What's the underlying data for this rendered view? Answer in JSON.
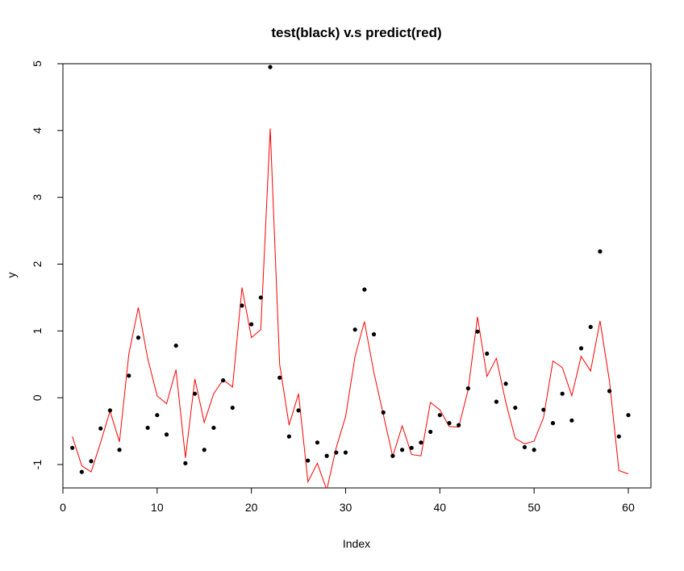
{
  "chart_data": {
    "type": "scatter",
    "title": "test(black) v.s predict(red)",
    "xlabel": "Index",
    "ylabel": "y",
    "xlim": [
      0,
      62.4
    ],
    "ylim": [
      -1.35,
      5.0
    ],
    "x_ticks": [
      0,
      10,
      20,
      30,
      40,
      50,
      60
    ],
    "y_ticks": [
      -1,
      0,
      1,
      2,
      3,
      4,
      5
    ],
    "grid": false,
    "series": [
      {
        "style": "points",
        "color": "#000000",
        "x": [
          1,
          2,
          3,
          4,
          5,
          6,
          7,
          8,
          9,
          10,
          11,
          12,
          13,
          14,
          15,
          16,
          17,
          18,
          19,
          20,
          21,
          22,
          23,
          24,
          25,
          26,
          27,
          28,
          29,
          30,
          31,
          32,
          33,
          34,
          35,
          36,
          37,
          38,
          39,
          40,
          41,
          42,
          43,
          44,
          45,
          46,
          47,
          48,
          49,
          50,
          51,
          52,
          53,
          54,
          55,
          56,
          57,
          58,
          59,
          60
        ],
        "y": [
          -0.75,
          -1.11,
          -0.95,
          -0.46,
          -0.19,
          -0.78,
          0.33,
          0.9,
          -0.45,
          -0.26,
          -0.55,
          0.78,
          -0.98,
          0.06,
          -0.78,
          -0.45,
          0.26,
          -0.15,
          1.38,
          1.1,
          1.5,
          4.95,
          0.3,
          -0.58,
          -0.19,
          -0.94,
          -0.67,
          -0.87,
          -0.82,
          -0.82,
          1.02,
          1.62,
          0.95,
          -0.22,
          -0.87,
          -0.78,
          -0.75,
          -0.67,
          -0.51,
          -0.26,
          -0.38,
          -0.41,
          0.14,
          0.99,
          0.66,
          -0.06,
          0.21,
          -0.15,
          -0.74,
          -0.78,
          -0.18,
          -0.38,
          0.06,
          -0.34,
          0.74,
          1.06,
          2.19,
          0.1,
          -0.58,
          -0.26
        ]
      },
      {
        "style": "line",
        "color": "#ff0000",
        "x": [
          1,
          2,
          3,
          4,
          5,
          6,
          7,
          8,
          9,
          10,
          11,
          12,
          13,
          14,
          15,
          16,
          17,
          18,
          19,
          20,
          21,
          22,
          23,
          24,
          25,
          26,
          27,
          28,
          29,
          30,
          31,
          32,
          33,
          34,
          35,
          36,
          37,
          38,
          39,
          40,
          41,
          42,
          43,
          44,
          45,
          46,
          47,
          48,
          49,
          50,
          51,
          52,
          53,
          54,
          55,
          56,
          57,
          58,
          59,
          60
        ],
        "y": [
          -0.58,
          -1.02,
          -1.11,
          -0.67,
          -0.2,
          -0.66,
          0.66,
          1.35,
          0.59,
          0.03,
          -0.09,
          0.42,
          -0.9,
          0.28,
          -0.37,
          0.06,
          0.27,
          0.16,
          1.65,
          0.9,
          1.02,
          4.03,
          0.5,
          -0.41,
          0.06,
          -1.26,
          -0.98,
          -1.38,
          -0.75,
          -0.28,
          0.62,
          1.14,
          0.38,
          -0.25,
          -0.88,
          -0.42,
          -0.85,
          -0.87,
          -0.07,
          -0.18,
          -0.43,
          -0.44,
          0.12,
          1.21,
          0.32,
          0.59,
          -0.07,
          -0.61,
          -0.69,
          -0.65,
          -0.3,
          0.55,
          0.45,
          0.03,
          0.62,
          0.4,
          1.15,
          0.25,
          -1.09,
          -1.14
        ]
      }
    ]
  }
}
